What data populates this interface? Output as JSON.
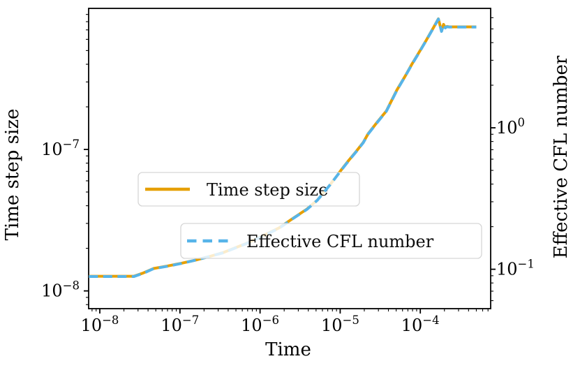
{
  "figure": {
    "background": "#ffffff",
    "xlabel": "Time",
    "ylabel_left": "Time step size",
    "ylabel_right": "Effective CFL number"
  },
  "legend": {
    "entries": [
      {
        "label": "Time step size",
        "color": "#E69F00",
        "style": "solid"
      },
      {
        "label": "Effective CFL number",
        "color": "#56B4E9",
        "style": "dashed"
      }
    ]
  },
  "chart_data": {
    "type": "line",
    "title": "",
    "xlabel": "Time",
    "x_scale": "log",
    "y_scale": "log",
    "grid": false,
    "x_range": [
      7.3e-09,
      0.00075
    ],
    "left_axis": {
      "label": "Time step size",
      "range": [
        7.5e-09,
        9.9e-07
      ],
      "ticks": [
        {
          "value": 1e-07,
          "base": "10",
          "exp": "−7"
        },
        {
          "value": 1e-08,
          "base": "10",
          "exp": "−8"
        }
      ]
    },
    "right_axis": {
      "label": "Effective CFL number",
      "range": [
        0.053,
        6.9
      ],
      "ticks": [
        {
          "value": 1,
          "base": "10",
          "exp": "0"
        },
        {
          "value": 0.1,
          "base": "10",
          "exp": "−1"
        }
      ]
    },
    "x_ticks": [
      {
        "value": 1e-08,
        "base": "10",
        "exp": "−8"
      },
      {
        "value": 1e-07,
        "base": "10",
        "exp": "−7"
      },
      {
        "value": 1e-06,
        "base": "10",
        "exp": "−6"
      },
      {
        "value": 1e-05,
        "base": "10",
        "exp": "−5"
      },
      {
        "value": 0.0001,
        "base": "10",
        "exp": "−4"
      }
    ],
    "series": [
      {
        "name": "Time step size",
        "axis": "left",
        "color": "#E69F00",
        "style": "solid",
        "x": [
          7.3e-09,
          1.5e-08,
          2.67e-08,
          3.5e-08,
          4.7e-08,
          7e-08,
          1.05e-07,
          1.56e-07,
          2.33e-07,
          3.5e-07,
          6.4e-07,
          1.05e-06,
          1.73e-06,
          2.6e-06,
          3.85e-06,
          5.2e-06,
          7.5e-06,
          1.05e-05,
          1.29e-05,
          1.58e-05,
          1.94e-05,
          2.23e-05,
          2.9e-05,
          3.77e-05,
          5.1e-05,
          6.5e-05,
          7.9e-05,
          9.3e-05,
          0.000118,
          0.000145,
          0.000168,
          0.000184,
          0.000195,
          0.000205,
          0.000215,
          0.00023,
          0.0005
        ],
        "y": [
          1.27e-08,
          1.27e-08,
          1.27e-08,
          1.34e-08,
          1.44e-08,
          1.5e-08,
          1.57e-08,
          1.65e-08,
          1.75e-08,
          1.87e-08,
          2.14e-08,
          2.43e-08,
          2.79e-08,
          3.27e-08,
          3.79e-08,
          4.4e-08,
          5.65e-08,
          7.26e-08,
          8.42e-08,
          9.66e-08,
          1.12e-07,
          1.29e-07,
          1.56e-07,
          1.87e-07,
          2.63e-07,
          3.31e-07,
          4.03e-07,
          4.69e-07,
          5.88e-07,
          7.21e-07,
          8.38e-07,
          6.85e-07,
          7.65e-07,
          7.25e-07,
          7.4e-07,
          7.35e-07,
          7.35e-07
        ]
      },
      {
        "name": "Effective CFL number",
        "axis": "right",
        "color": "#56B4E9",
        "style": "dashed",
        "x": [
          7.3e-09,
          1.5e-08,
          2.67e-08,
          3.5e-08,
          4.7e-08,
          7e-08,
          1.05e-07,
          1.56e-07,
          2.33e-07,
          3.5e-07,
          6.4e-07,
          1.05e-06,
          1.73e-06,
          2.6e-06,
          3.85e-06,
          5.2e-06,
          7.5e-06,
          1.05e-05,
          1.29e-05,
          1.58e-05,
          1.94e-05,
          2.23e-05,
          2.9e-05,
          3.77e-05,
          5.1e-05,
          6.5e-05,
          7.9e-05,
          9.3e-05,
          0.000118,
          0.000145,
          0.000168,
          0.000184,
          0.000195,
          0.000205,
          0.000215,
          0.00023,
          0.0005
        ],
        "y": [
          0.0889,
          0.0889,
          0.0889,
          0.0938,
          0.101,
          0.105,
          0.11,
          0.116,
          0.123,
          0.131,
          0.15,
          0.17,
          0.195,
          0.229,
          0.265,
          0.308,
          0.396,
          0.508,
          0.589,
          0.676,
          0.784,
          0.903,
          1.09,
          1.31,
          1.84,
          2.32,
          2.82,
          3.28,
          4.12,
          5.05,
          5.87,
          4.8,
          5.36,
          5.08,
          5.18,
          5.15,
          5.15
        ]
      }
    ]
  }
}
